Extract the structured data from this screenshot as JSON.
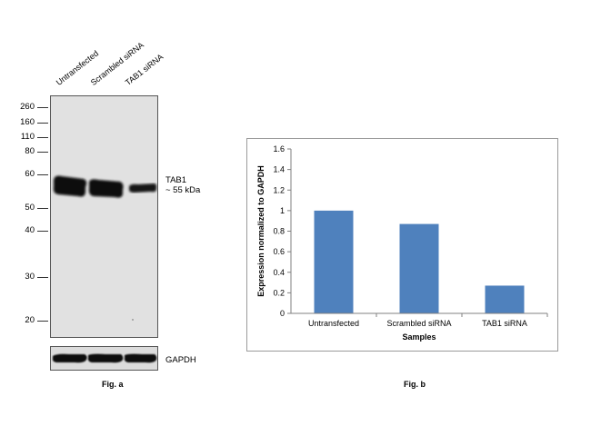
{
  "western_blot": {
    "lanes": [
      "Untransfected",
      "Scrambled siRNA",
      "TAB1 siRNA"
    ],
    "mw_markers": [
      "260",
      "160",
      "110",
      "80",
      "60",
      "50",
      "40",
      "30",
      "20"
    ],
    "target_band": {
      "name": "TAB1",
      "size": "~ 55 kDa"
    },
    "loading_control": "GAPDH",
    "figure_label": "Fig. a"
  },
  "figure_b_label": "Fig. b",
  "chart_data": {
    "type": "bar",
    "categories": [
      "Untransfected",
      "Scrambled siRNA",
      "TAB1 siRNA"
    ],
    "values": [
      1.0,
      0.87,
      0.27
    ],
    "xlabel": "Samples",
    "ylabel": "Expression normalized to GAPDH",
    "ylim": [
      0,
      1.6
    ],
    "yticks": [
      "0",
      "0.2",
      "0.4",
      "0.6",
      "0.8",
      "1",
      "1.2",
      "1.4",
      "1.6"
    ],
    "grid": false,
    "legend": "none",
    "bar_color": "#4f81bd"
  }
}
